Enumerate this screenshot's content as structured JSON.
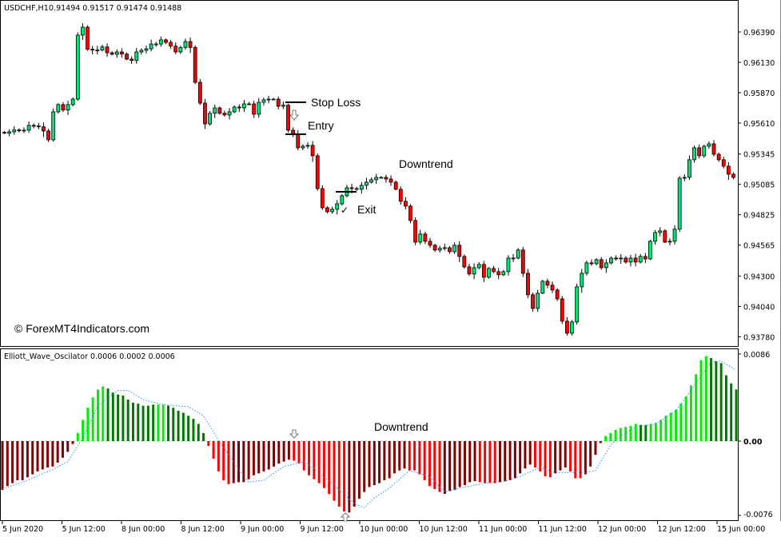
{
  "main_chart": {
    "symbol_header": "USDCHF,H1",
    "ohlc_header": "0.91494 0.91517 0.91474 0.91488",
    "watermark": "© ForexMT4Indicators.com",
    "annotations": {
      "stop_loss": "Stop Loss",
      "entry": "Entry",
      "exit": "Exit",
      "downtrend": "Downtrend",
      "exit_check": "✓"
    }
  },
  "oscillator": {
    "header": "Elliott_Wave_Oscilator 0.0006 0.0002 0.0006",
    "annotation_downtrend": "Downtrend",
    "axis_labels": [
      "0.0086",
      "0.00",
      "-0.0076"
    ]
  },
  "colors": {
    "bull_candle": "#00e676",
    "bear_candle": "#ff0000",
    "osc_light_green": "#00ee00",
    "osc_dark_green": "#007700",
    "osc_red": "#ff0000",
    "osc_dark_red": "#7f0000",
    "signal_line": "#1e90ff"
  },
  "chart_data": [
    {
      "type": "candlestick",
      "title": "USDCHF,H1",
      "ylim": [
        0.9372,
        0.9652
      ],
      "y_ticks": [
        "0.96390",
        "0.96130",
        "0.95870",
        "0.95610",
        "0.95345",
        "0.95085",
        "0.94825",
        "0.94565",
        "0.94300",
        "0.94040",
        "0.93780"
      ],
      "x_ticks": [
        "5 Jun 2020",
        "5 Jun 12:00",
        "8 Jun 00:00",
        "8 Jun 12:00",
        "9 Jun 00:00",
        "9 Jun 12:00",
        "10 Jun 00:00",
        "10 Jun 12:00",
        "11 Jun 00:00",
        "11 Jun 12:00",
        "12 Jun 00:00",
        "12 Jun 12:00",
        "15 Jun 00:00"
      ],
      "first_open": 0.9553,
      "close": [
        0.95523,
        0.95535,
        0.95551,
        0.95549,
        0.95549,
        0.9559,
        0.95585,
        0.95578,
        0.95542,
        0.95467,
        0.95706,
        0.95768,
        0.95722,
        0.95768,
        0.95815,
        0.96363,
        0.96431,
        0.96242,
        0.96235,
        0.96235,
        0.96262,
        0.96212,
        0.96199,
        0.96219,
        0.96201,
        0.96157,
        0.96146,
        0.96219,
        0.96233,
        0.96246,
        0.96287,
        0.96287,
        0.96322,
        0.96301,
        0.96269,
        0.96219,
        0.96258,
        0.96308,
        0.96258,
        0.95959,
        0.95781,
        0.95603,
        0.95694,
        0.9574,
        0.95694,
        0.95679,
        0.95706,
        0.95747,
        0.9574,
        0.95774,
        0.95774,
        0.95686,
        0.95788,
        0.95809,
        0.95815,
        0.95815,
        0.95754,
        0.95763,
        0.95549,
        0.95515,
        0.95398,
        0.95412,
        0.95419,
        0.9533,
        0.95049,
        0.94885,
        0.94851,
        0.94872,
        0.94919,
        0.94988,
        0.95056,
        0.95049,
        0.95043,
        0.95077,
        0.95104,
        0.95125,
        0.95145,
        0.95145,
        0.95131,
        0.95104,
        0.95043,
        0.9494,
        0.94899,
        0.94776,
        0.94591,
        0.9466,
        0.94598,
        0.94564,
        0.94523,
        0.94537,
        0.94543,
        0.94509,
        0.94564,
        0.94468,
        0.94379,
        0.94318,
        0.94372,
        0.944,
        0.9429,
        0.94365,
        0.94338,
        0.94311,
        0.94338,
        0.94454,
        0.94454,
        0.94523,
        0.94324,
        0.9414,
        0.94023,
        0.94153,
        0.94256,
        0.94222,
        0.94181,
        0.94105,
        0.93914,
        0.93811,
        0.93907,
        0.94208,
        0.94324,
        0.94413,
        0.94406,
        0.94441,
        0.94372,
        0.94413,
        0.94454,
        0.94447,
        0.94454,
        0.9442,
        0.94454,
        0.9442,
        0.94468,
        0.94447,
        0.94598,
        0.94673,
        0.94687,
        0.94591,
        0.94598,
        0.94701,
        0.95138,
        0.95145,
        0.95296,
        0.95398,
        0.9533,
        0.95412,
        0.95432,
        0.95343,
        0.95296,
        0.95241,
        0.95172,
        0.95145
      ]
    },
    {
      "type": "bar",
      "title": "Elliott_Wave_Oscilator",
      "ylim": [
        -0.0076,
        0.0086
      ],
      "y_ticks": [
        "0.0086",
        "0.00",
        "-0.0076"
      ],
      "values": [
        -0.005,
        -0.0046,
        -0.0043,
        -0.004,
        -0.004,
        -0.0037,
        -0.0034,
        -0.0031,
        -0.0029,
        -0.0027,
        -0.0026,
        -0.0022,
        -0.0017,
        -0.0011,
        -0.0003,
        0.0008,
        0.0021,
        0.0033,
        0.0043,
        0.0051,
        0.0054,
        0.0052,
        0.0048,
        0.0046,
        0.0045,
        0.0041,
        0.0038,
        0.0037,
        0.0035,
        0.0035,
        0.0036,
        0.0036,
        0.0036,
        0.0035,
        0.0033,
        0.003,
        0.0028,
        0.0025,
        0.0022,
        0.0017,
        0.0008,
        -0.0005,
        -0.0018,
        -0.0031,
        -0.004,
        -0.0044,
        -0.0043,
        -0.0042,
        -0.0042,
        -0.0039,
        -0.0035,
        -0.0033,
        -0.0031,
        -0.0029,
        -0.0026,
        -0.0023,
        -0.0021,
        -0.0019,
        -0.002,
        -0.0023,
        -0.003,
        -0.0035,
        -0.0039,
        -0.0043,
        -0.0048,
        -0.0054,
        -0.0061,
        -0.0067,
        -0.0072,
        -0.0073,
        -0.0067,
        -0.0059,
        -0.0052,
        -0.0047,
        -0.0045,
        -0.0043,
        -0.004,
        -0.0038,
        -0.0033,
        -0.003,
        -0.0028,
        -0.003,
        -0.003,
        -0.0034,
        -0.004,
        -0.0046,
        -0.0049,
        -0.0052,
        -0.0054,
        -0.0051,
        -0.005,
        -0.0047,
        -0.0045,
        -0.0042,
        -0.0041,
        -0.0042,
        -0.0043,
        -0.0043,
        -0.0043,
        -0.0042,
        -0.0041,
        -0.004,
        -0.0038,
        -0.0033,
        -0.0028,
        -0.0024,
        -0.0027,
        -0.0031,
        -0.0036,
        -0.0037,
        -0.0033,
        -0.003,
        -0.0027,
        -0.0031,
        -0.0038,
        -0.0038,
        -0.0034,
        -0.0026,
        -0.0014,
        -0.0002,
        0.0005,
        0.0008,
        0.0011,
        0.0013,
        0.0014,
        0.0015,
        0.0017,
        0.0016,
        0.0016,
        0.0017,
        0.0018,
        0.0021,
        0.0025,
        0.0028,
        0.0031,
        0.0037,
        0.0044,
        0.0055,
        0.0066,
        0.008,
        0.0084,
        0.0082,
        0.0079,
        0.0077,
        0.0065,
        0.0057,
        0.0051
      ],
      "color_runs": [
        [
          "dark-red",
          15
        ],
        [
          "light-green",
          6
        ],
        [
          "dark-green",
          10
        ],
        [
          "light-green",
          2
        ],
        [
          "dark-green",
          8
        ],
        [
          "red",
          5
        ],
        [
          "dark-red",
          12
        ],
        [
          "red",
          11
        ],
        [
          "dark-red",
          12
        ],
        [
          "red",
          7
        ],
        [
          "dark-red",
          7
        ],
        [
          "red",
          4
        ],
        [
          "dark-red",
          7
        ],
        [
          "red",
          4
        ],
        [
          "dark-red",
          3
        ],
        [
          "red",
          3
        ],
        [
          "dark-red",
          4
        ],
        [
          "light-green",
          7
        ],
        [
          "dark-green",
          2
        ],
        [
          "light-green",
          12
        ],
        [
          "dark-green",
          6
        ]
      ],
      "signal_line": [
        [
          1,
          -0.0049
        ],
        [
          6,
          -0.004
        ],
        [
          11,
          -0.0029
        ],
        [
          14,
          -0.0021
        ],
        [
          17,
          0.0003
        ],
        [
          20,
          0.0035
        ],
        [
          24,
          0.005
        ],
        [
          26,
          0.005
        ],
        [
          29,
          0.0041
        ],
        [
          33,
          0.0036
        ],
        [
          38,
          0.0034
        ],
        [
          41,
          0.0025
        ],
        [
          44,
          0.0001
        ],
        [
          48,
          -0.0029
        ],
        [
          50,
          -0.0042
        ],
        [
          53,
          -0.004
        ],
        [
          57,
          -0.0026
        ],
        [
          61,
          -0.0021
        ],
        [
          64,
          -0.0032
        ],
        [
          67,
          -0.0045
        ],
        [
          71,
          -0.0064
        ],
        [
          73,
          -0.0068
        ],
        [
          75,
          -0.0058
        ],
        [
          78,
          -0.0048
        ],
        [
          82,
          -0.003
        ],
        [
          86,
          -0.0036
        ],
        [
          89,
          -0.0052
        ],
        [
          92,
          -0.0048
        ],
        [
          97,
          -0.0043
        ],
        [
          101,
          -0.0041
        ],
        [
          104,
          -0.0036
        ],
        [
          108,
          -0.0027
        ],
        [
          111,
          -0.0032
        ],
        [
          117,
          -0.0032
        ],
        [
          119,
          -0.003
        ],
        [
          122,
          -0.0004
        ],
        [
          124,
          0.0005
        ],
        [
          127,
          0.0014
        ],
        [
          131,
          0.0017
        ],
        [
          135,
          0.003
        ],
        [
          138,
          0.005
        ],
        [
          142,
          0.0078
        ],
        [
          144,
          0.0079
        ],
        [
          147,
          0.007
        ]
      ]
    }
  ]
}
